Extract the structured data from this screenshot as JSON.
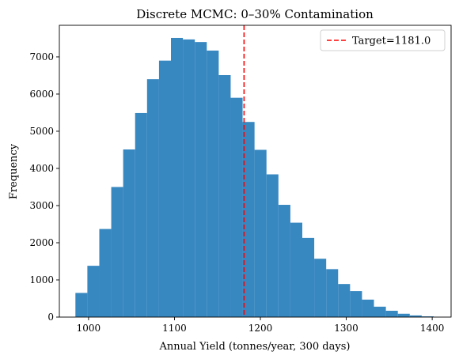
{
  "chart_data": {
    "type": "bar",
    "title": "Discrete MCMC: 0–30% Contamination",
    "xlabel": "Annual Yield (tonnes/year, 300 days)",
    "ylabel": "Frequency",
    "xlim": [
      966,
      1422
    ],
    "ylim": [
      0,
      7850
    ],
    "xticks": [
      1000,
      1100,
      1200,
      1300,
      1400
    ],
    "yticks": [
      0,
      1000,
      2000,
      3000,
      4000,
      5000,
      6000,
      7000
    ],
    "grid": false,
    "legend_position": "top-right",
    "bar_color": "#3787c0",
    "reference_line": {
      "x": 1181.0,
      "label": "Target=1181.0",
      "color": "#ff0000",
      "style": "dashed"
    },
    "bins": [
      {
        "x0": 984.7,
        "x1": 998.6,
        "value": 650
      },
      {
        "x0": 998.6,
        "x1": 1012.5,
        "value": 1380
      },
      {
        "x0": 1012.5,
        "x1": 1026.4,
        "value": 2370
      },
      {
        "x0": 1026.4,
        "x1": 1040.3,
        "value": 3500
      },
      {
        "x0": 1040.3,
        "x1": 1054.2,
        "value": 4510
      },
      {
        "x0": 1054.2,
        "x1": 1068.1,
        "value": 5490
      },
      {
        "x0": 1068.1,
        "x1": 1082.0,
        "value": 6400
      },
      {
        "x0": 1082.0,
        "x1": 1095.9,
        "value": 6900
      },
      {
        "x0": 1095.9,
        "x1": 1109.8,
        "value": 7510
      },
      {
        "x0": 1109.8,
        "x1": 1123.7,
        "value": 7470
      },
      {
        "x0": 1123.7,
        "x1": 1137.6,
        "value": 7400
      },
      {
        "x0": 1137.6,
        "x1": 1151.5,
        "value": 7170
      },
      {
        "x0": 1151.5,
        "x1": 1165.4,
        "value": 6510
      },
      {
        "x0": 1165.4,
        "x1": 1179.3,
        "value": 5900
      },
      {
        "x0": 1179.3,
        "x1": 1193.2,
        "value": 5250
      },
      {
        "x0": 1193.2,
        "x1": 1207.1,
        "value": 4500
      },
      {
        "x0": 1207.1,
        "x1": 1221.0,
        "value": 3840
      },
      {
        "x0": 1221.0,
        "x1": 1234.9,
        "value": 3020
      },
      {
        "x0": 1234.9,
        "x1": 1248.8,
        "value": 2540
      },
      {
        "x0": 1248.8,
        "x1": 1262.7,
        "value": 2130
      },
      {
        "x0": 1262.7,
        "x1": 1276.6,
        "value": 1570
      },
      {
        "x0": 1276.6,
        "x1": 1290.5,
        "value": 1290
      },
      {
        "x0": 1290.5,
        "x1": 1304.4,
        "value": 890
      },
      {
        "x0": 1304.4,
        "x1": 1318.3,
        "value": 700
      },
      {
        "x0": 1318.3,
        "x1": 1332.2,
        "value": 470
      },
      {
        "x0": 1332.2,
        "x1": 1346.1,
        "value": 280
      },
      {
        "x0": 1346.1,
        "x1": 1360.0,
        "value": 170
      },
      {
        "x0": 1360.0,
        "x1": 1373.9,
        "value": 90
      },
      {
        "x0": 1373.9,
        "x1": 1387.8,
        "value": 45
      },
      {
        "x0": 1387.8,
        "x1": 1401.7,
        "value": 20
      }
    ]
  }
}
